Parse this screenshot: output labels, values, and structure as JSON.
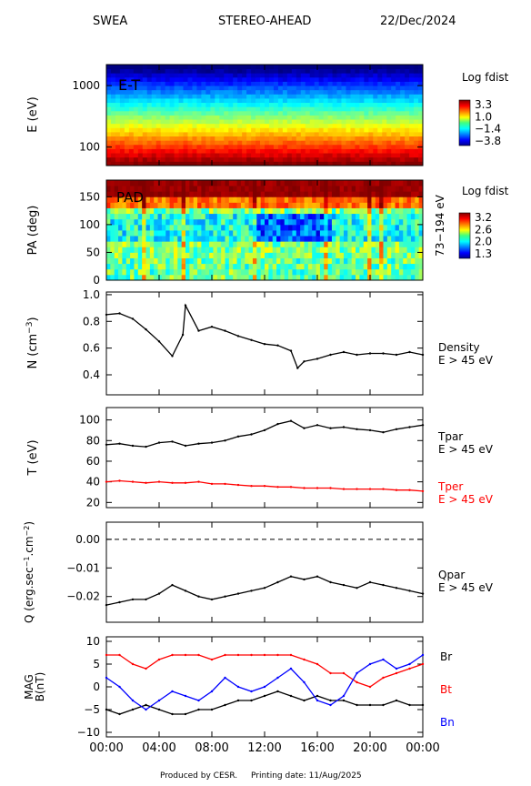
{
  "header": {
    "instrument": "SWEA",
    "spacecraft": "STEREO-AHEAD",
    "date": "22/Dec/2024"
  },
  "footer": {
    "credit": "Produced by CESR.",
    "print_date": "Printing date: 11/Aug/2025"
  },
  "colors": {
    "trace": "#000000",
    "red": "#ff0000",
    "blue": "#0000ff"
  },
  "chart_data": [
    {
      "type": "heatmap",
      "panel": "E-T",
      "label": "E-T",
      "ylabel": "E (eV)",
      "yscale": "log",
      "ylim": [
        50,
        2200
      ],
      "yticks": [
        100,
        1000
      ],
      "yticklabels": [
        "100",
        "1000"
      ],
      "colorbar": {
        "title": "Log fdist",
        "ticks": [
          "3.3",
          "1.0",
          "−1.4",
          "−3.8"
        ],
        "range": [
          -3.8,
          3.3
        ]
      }
    },
    {
      "type": "heatmap",
      "panel": "PAD",
      "label": "PAD",
      "ylabel": "PA (deg)",
      "ylim": [
        0,
        180
      ],
      "yticks": [
        0,
        50,
        100,
        150
      ],
      "yticklabels": [
        "0",
        "50",
        "100",
        "150"
      ],
      "right_label": "73−194 eV",
      "colorbar": {
        "title": "Log fdist",
        "ticks": [
          "3.2",
          "2.6",
          "2.0",
          "1.3"
        ],
        "range": [
          1.3,
          3.2
        ]
      }
    },
    {
      "type": "line",
      "panel": "density",
      "ylabel": "N (cm⁻³)",
      "ylim": [
        0.25,
        1.02
      ],
      "yticks": [
        0.4,
        0.6,
        0.8,
        1.0
      ],
      "yticklabels": [
        "0.4",
        "0.6",
        "0.8",
        "1.0"
      ],
      "series": [
        {
          "name": "Density",
          "sub": "E > 45 eV",
          "color": "black",
          "x": [
            0,
            1,
            2,
            3,
            4,
            5,
            5.8,
            6,
            7,
            8,
            9,
            10,
            11,
            12,
            13,
            14,
            14.5,
            15,
            16,
            17,
            18,
            19,
            20,
            21,
            22,
            23,
            24
          ],
          "y": [
            0.85,
            0.86,
            0.82,
            0.74,
            0.65,
            0.54,
            0.7,
            0.92,
            0.73,
            0.76,
            0.73,
            0.69,
            0.66,
            0.63,
            0.62,
            0.58,
            0.45,
            0.5,
            0.52,
            0.55,
            0.57,
            0.55,
            0.56,
            0.56,
            0.55,
            0.57,
            0.55
          ]
        }
      ]
    },
    {
      "type": "line",
      "panel": "temperature",
      "ylabel": "T (eV)",
      "ylim": [
        15,
        112
      ],
      "yticks": [
        20,
        40,
        60,
        80,
        100
      ],
      "yticklabels": [
        "20",
        "40",
        "60",
        "80",
        "100"
      ],
      "series": [
        {
          "name": "Tpar",
          "sub": "E > 45 eV",
          "color": "black",
          "x": [
            0,
            1,
            2,
            3,
            4,
            5,
            6,
            7,
            8,
            9,
            10,
            11,
            12,
            13,
            14,
            15,
            16,
            17,
            18,
            19,
            20,
            21,
            22,
            23,
            24
          ],
          "y": [
            76,
            77,
            75,
            74,
            78,
            79,
            75,
            77,
            78,
            80,
            84,
            86,
            90,
            96,
            99,
            92,
            95,
            92,
            93,
            91,
            90,
            88,
            91,
            93,
            95
          ]
        },
        {
          "name": "Tper",
          "sub": "E > 45 eV",
          "color": "red",
          "x": [
            0,
            1,
            2,
            3,
            4,
            5,
            6,
            7,
            8,
            9,
            10,
            11,
            12,
            13,
            14,
            15,
            16,
            17,
            18,
            19,
            20,
            21,
            22,
            23,
            24
          ],
          "y": [
            40,
            41,
            40,
            39,
            40,
            39,
            39,
            40,
            38,
            38,
            37,
            36,
            36,
            35,
            35,
            34,
            34,
            34,
            33,
            33,
            33,
            33,
            32,
            32,
            31
          ]
        }
      ]
    },
    {
      "type": "line",
      "panel": "heat-flux",
      "ylabel": "Q (erg.sec⁻¹.cm⁻²)",
      "ylim": [
        -0.029,
        0.006
      ],
      "yticks": [
        -0.02,
        -0.01,
        0.0
      ],
      "yticklabels": [
        "−0.02",
        "−0.01",
        "0.00"
      ],
      "reference_line": 0.0,
      "series": [
        {
          "name": "Qpar",
          "sub": "E > 45 eV",
          "color": "black",
          "x": [
            0,
            1,
            2,
            3,
            4,
            5,
            6,
            7,
            8,
            9,
            10,
            11,
            12,
            13,
            14,
            15,
            16,
            17,
            18,
            19,
            20,
            21,
            22,
            23,
            24
          ],
          "y": [
            -0.023,
            -0.022,
            -0.021,
            -0.021,
            -0.019,
            -0.016,
            -0.018,
            -0.02,
            -0.021,
            -0.02,
            -0.019,
            -0.018,
            -0.017,
            -0.015,
            -0.013,
            -0.014,
            -0.013,
            -0.015,
            -0.016,
            -0.017,
            -0.015,
            -0.016,
            -0.017,
            -0.018,
            -0.019
          ]
        }
      ]
    },
    {
      "type": "line",
      "panel": "magnetic-field",
      "ylabel": "MAG B(nT)",
      "ylim": [
        -11,
        11
      ],
      "yticks": [
        -10,
        -5,
        0,
        5,
        10
      ],
      "yticklabels": [
        "−10",
        "−5",
        "0",
        "5",
        "10"
      ],
      "series": [
        {
          "name": "Br",
          "color": "black",
          "x": [
            0,
            1,
            2,
            3,
            4,
            5,
            6,
            7,
            8,
            9,
            10,
            11,
            12,
            13,
            14,
            15,
            16,
            17,
            18,
            19,
            20,
            21,
            22,
            23,
            24
          ],
          "y": [
            -5,
            -6,
            -5,
            -4,
            -5,
            -6,
            -6,
            -5,
            -5,
            -4,
            -3,
            -3,
            -2,
            -1,
            -2,
            -3,
            -2,
            -3,
            -3,
            -4,
            -4,
            -4,
            -3,
            -4,
            -4
          ]
        },
        {
          "name": "Bt",
          "color": "red",
          "x": [
            0,
            1,
            2,
            3,
            4,
            5,
            6,
            7,
            8,
            9,
            10,
            11,
            12,
            13,
            14,
            15,
            16,
            17,
            18,
            19,
            20,
            21,
            22,
            23,
            24
          ],
          "y": [
            7,
            7,
            5,
            4,
            6,
            7,
            7,
            7,
            6,
            7,
            7,
            7,
            7,
            7,
            7,
            6,
            5,
            3,
            3,
            1,
            0,
            2,
            3,
            4,
            5
          ]
        },
        {
          "name": "Bn",
          "color": "blue",
          "x": [
            0,
            1,
            2,
            3,
            4,
            5,
            6,
            7,
            8,
            9,
            10,
            11,
            12,
            13,
            14,
            15,
            16,
            17,
            18,
            19,
            20,
            21,
            22,
            23,
            24
          ],
          "y": [
            2,
            0,
            -3,
            -5,
            -3,
            -1,
            -2,
            -3,
            -1,
            2,
            0,
            -1,
            0,
            2,
            4,
            1,
            -3,
            -4,
            -2,
            3,
            5,
            6,
            4,
            5,
            7
          ]
        }
      ]
    }
  ],
  "xaxis": {
    "range": [
      0,
      24
    ],
    "ticks": [
      0,
      4,
      8,
      12,
      16,
      20,
      24
    ],
    "ticklabels": [
      "00:00",
      "04:00",
      "08:00",
      "12:00",
      "16:00",
      "20:00",
      "00:00"
    ]
  }
}
